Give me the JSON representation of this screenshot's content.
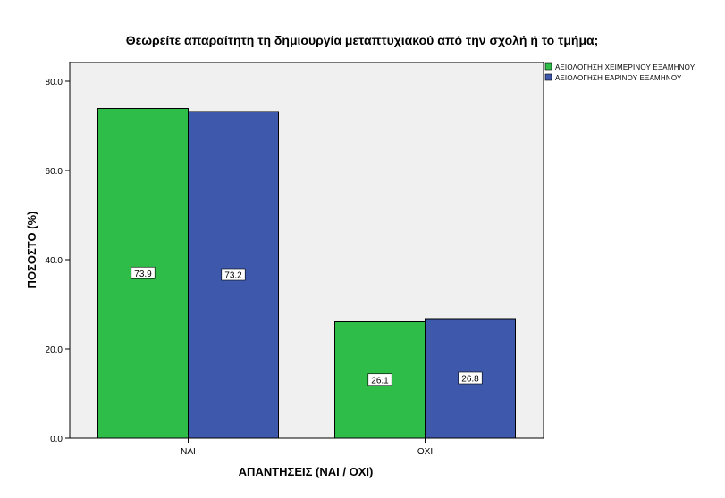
{
  "chart_data": {
    "type": "bar",
    "title": "Θεωρείτε απαραίτητη τη δημιουργία μεταπτυχιακού από την σχολή ή το τμήμα;",
    "xlabel": "ΑΠΑΝΤΗΣΕΙΣ (ΝΑΙ / ΟΧΙ)",
    "ylabel": "ΠΟΣΟΣΤΟ (%)",
    "categories": [
      "ΝΑΙ",
      "ΟΧΙ"
    ],
    "series": [
      {
        "name": "ΑΞΙΟΛΟΓΗΣΗ ΧΕΙΜΕΡΙΝΟΥ ΕΞΑΜΗΝΟΥ",
        "color": "#2fbd4a",
        "values": [
          73.9,
          26.1
        ]
      },
      {
        "name": "ΑΞΙΟΛΟΓΗΣΗ ΕΑΡΙΝΟΥ ΕΞΑΜΗΝΟΥ",
        "color": "#3e58ac",
        "values": [
          73.2,
          26.8
        ]
      }
    ],
    "ylim": [
      0,
      80
    ],
    "yticks": [
      "0.0",
      "20.0",
      "40.0",
      "60.0",
      "80.0"
    ],
    "ytick_values": [
      0,
      20,
      40,
      60,
      80
    ],
    "grid": false,
    "legend_position": "top-right",
    "plot_background": "#f0f0f0"
  }
}
